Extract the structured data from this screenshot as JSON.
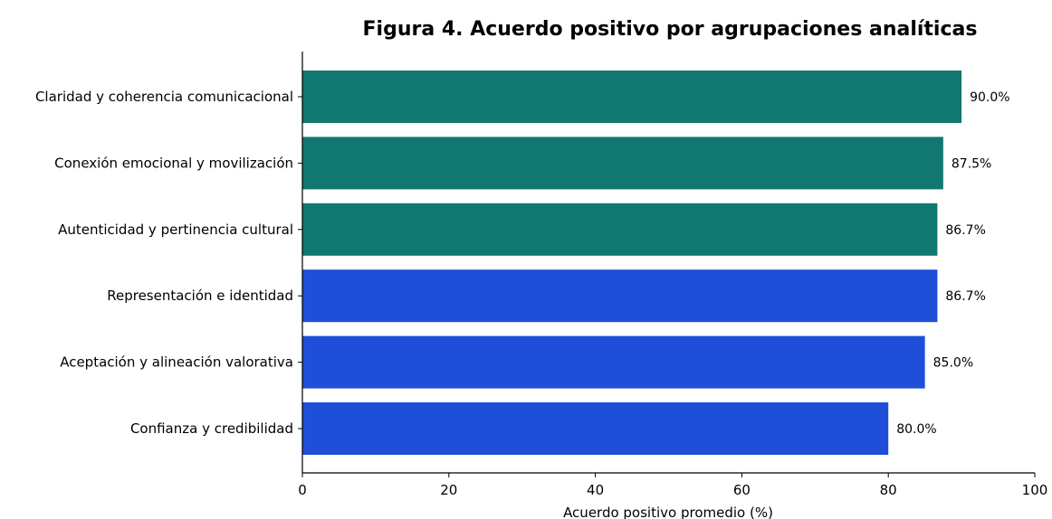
{
  "chart_data": {
    "type": "bar",
    "orientation": "horizontal",
    "title": "Figura 4. Acuerdo positivo por agrupaciones analíticas",
    "xlabel": "Acuerdo positivo promedio (%)",
    "ylabel": "",
    "xlim": [
      0,
      100
    ],
    "xticks": [
      "0",
      "20",
      "40",
      "60",
      "80",
      "100"
    ],
    "grid": false,
    "categories": [
      "Claridad y coherencia comunicacional",
      "Conexión emocional y movilización",
      "Autenticidad y pertinencia cultural",
      "Representación e identidad",
      "Aceptación y alineación valorativa",
      "Confianza y credibilidad"
    ],
    "values": [
      90.0,
      87.5,
      86.7,
      86.7,
      85.0,
      80.0
    ],
    "value_labels": [
      "90.0%",
      "87.5%",
      "86.7%",
      "86.7%",
      "85.0%",
      "80.0%"
    ],
    "bar_colors": [
      "#117870",
      "#117870",
      "#117870",
      "#1f4fd8",
      "#1f4fd8",
      "#1f4fd8"
    ]
  }
}
